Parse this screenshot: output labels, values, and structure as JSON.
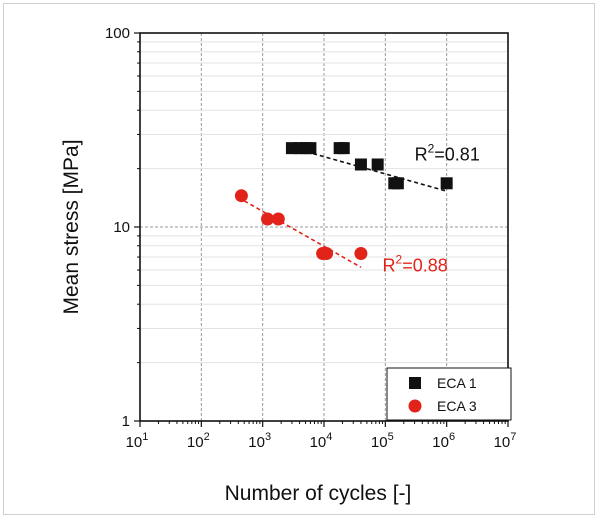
{
  "chart_data": {
    "type": "scatter",
    "xlabel": "Number of cycles [-]",
    "ylabel": "Mean stress [MPa]",
    "xscale": "log",
    "yscale": "log",
    "xlim": [
      10,
      10000000
    ],
    "ylim": [
      1,
      100
    ],
    "grid": true,
    "legend_position": "bottom-right",
    "x_ticks": [
      {
        "base": "10",
        "exp": "1",
        "value": 10
      },
      {
        "base": "10",
        "exp": "2",
        "value": 100
      },
      {
        "base": "10",
        "exp": "3",
        "value": 1000
      },
      {
        "base": "10",
        "exp": "4",
        "value": 10000
      },
      {
        "base": "10",
        "exp": "5",
        "value": 100000
      },
      {
        "base": "10",
        "exp": "6",
        "value": 1000000
      },
      {
        "base": "10",
        "exp": "7",
        "value": 10000000
      }
    ],
    "y_ticks": [
      {
        "label": "1",
        "value": 1
      },
      {
        "label": "10",
        "value": 10
      },
      {
        "label": "100",
        "value": 100
      }
    ],
    "series": [
      {
        "name": "ECA 1",
        "marker": "square",
        "color": "#111111",
        "points": [
          {
            "x": 3000,
            "y": 25.5
          },
          {
            "x": 4000,
            "y": 25.5
          },
          {
            "x": 5000,
            "y": 25.5
          },
          {
            "x": 6000,
            "y": 25.5
          },
          {
            "x": 18000,
            "y": 25.5
          },
          {
            "x": 21000,
            "y": 25.5
          },
          {
            "x": 40000,
            "y": 21
          },
          {
            "x": 75000,
            "y": 21
          },
          {
            "x": 140000,
            "y": 16.8
          },
          {
            "x": 160000,
            "y": 16.8
          },
          {
            "x": 1000000,
            "y": 16.8
          }
        ],
        "fit": {
          "from": {
            "x": 4000,
            "y": 25
          },
          "to": {
            "x": 1000000,
            "y": 15.3
          }
        },
        "annotation": {
          "prefix": "R",
          "sup": "2",
          "suffix": "=0.81",
          "x": 300000,
          "y": 22
        }
      },
      {
        "name": "ECA 3",
        "marker": "circle",
        "color": "#e2231a",
        "points": [
          {
            "x": 450,
            "y": 14.5
          },
          {
            "x": 1200,
            "y": 11
          },
          {
            "x": 1800,
            "y": 11
          },
          {
            "x": 9500,
            "y": 7.3
          },
          {
            "x": 11000,
            "y": 7.3
          },
          {
            "x": 40000,
            "y": 7.3
          }
        ],
        "fit": {
          "from": {
            "x": 400,
            "y": 14.2
          },
          "to": {
            "x": 40000,
            "y": 6.2
          }
        },
        "annotation": {
          "prefix": "R",
          "sup": "2",
          "suffix": "=0.88",
          "x": 90000,
          "y": 5.9
        }
      }
    ]
  }
}
